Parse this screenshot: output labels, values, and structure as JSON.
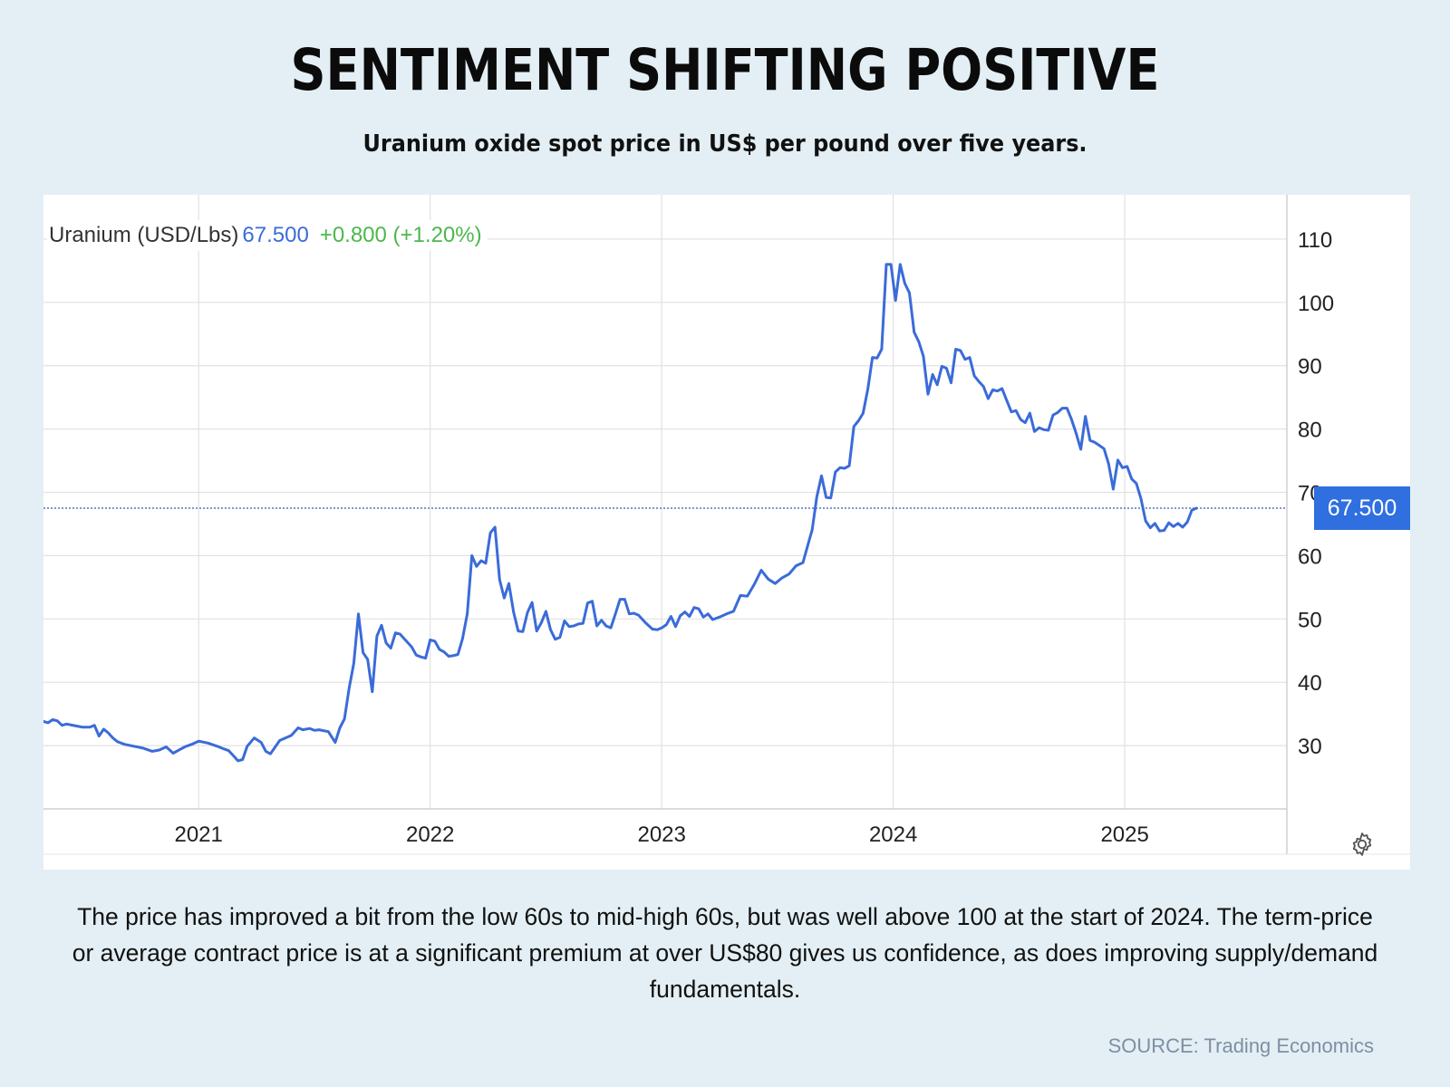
{
  "header": {
    "title": "SENTIMENT SHIFTING POSITIVE",
    "subtitle": "Uranium oxide spot price in US$ per pound over five years."
  },
  "legend": {
    "name": "Uranium (USD/Lbs)",
    "price": "67.500",
    "change": "+0.800 (+1.20%)"
  },
  "price_tag": "67.500",
  "icons": {
    "settings": "gear-icon"
  },
  "colors": {
    "line": "#3b6bd9",
    "price_tag": "#2f6fe0",
    "change_positive": "#4cb84c",
    "background": "#e3eff4"
  },
  "caption": "The price has improved a bit from the low 60s to mid-high 60s, but was well above 100 at the start of 2024. The term-price or average contract price is at a significant premium at over US$80 gives us confidence, as does improving supply/demand fundamentals.",
  "source": "SOURCE: Trading Economics",
  "chart_data": {
    "type": "line",
    "title": "",
    "xlabel": "",
    "ylabel": "",
    "xlim": [
      2020.33,
      2025.7
    ],
    "ylim": [
      20.0,
      117.0
    ],
    "y_ticks": [
      30,
      40,
      50,
      60,
      70,
      80,
      90,
      100,
      110
    ],
    "x_ticks": [
      2021,
      2022,
      2023,
      2024,
      2025
    ],
    "x_tick_labels": [
      "2021",
      "2022",
      "2023",
      "2024",
      "2025"
    ],
    "grid": true,
    "y_axis_side": "right",
    "last_value": 67.5,
    "series": [
      {
        "name": "Uranium (USD/Lbs)",
        "x": [
          2020.33,
          2020.35,
          2020.37,
          2020.39,
          2020.41,
          2020.43,
          2020.47,
          2020.5,
          2020.53,
          2020.55,
          2020.57,
          2020.59,
          2020.61,
          2020.63,
          2020.65,
          2020.68,
          2020.72,
          2020.76,
          2020.8,
          2020.83,
          2020.86,
          2020.89,
          2020.92,
          2020.94,
          2020.97,
          2021.0,
          2021.04,
          2021.08,
          2021.1,
          2021.13,
          2021.15,
          2021.17,
          2021.19,
          2021.21,
          2021.24,
          2021.27,
          2021.29,
          2021.31,
          2021.35,
          2021.4,
          2021.43,
          2021.45,
          2021.48,
          2021.5,
          2021.52,
          2021.56,
          2021.59,
          2021.61,
          2021.63,
          2021.65,
          2021.67,
          2021.69,
          2021.71,
          2021.73,
          2021.75,
          2021.77,
          2021.79,
          2021.81,
          2021.83,
          2021.85,
          2021.87,
          2021.9,
          2021.92,
          2021.94,
          2021.96,
          2021.98,
          2022.0,
          2022.02,
          2022.04,
          2022.06,
          2022.08,
          2022.1,
          2022.12,
          2022.14,
          2022.16,
          2022.18,
          2022.2,
          2022.22,
          2022.24,
          2022.26,
          2022.28,
          2022.3,
          2022.32,
          2022.34,
          2022.36,
          2022.38,
          2022.4,
          2022.42,
          2022.44,
          2022.46,
          2022.48,
          2022.5,
          2022.52,
          2022.54,
          2022.56,
          2022.58,
          2022.6,
          2022.62,
          2022.64,
          2022.66,
          2022.68,
          2022.7,
          2022.72,
          2022.74,
          2022.76,
          2022.78,
          2022.8,
          2022.82,
          2022.84,
          2022.86,
          2022.88,
          2022.9,
          2022.93,
          2022.96,
          2022.98,
          2023.0,
          2023.02,
          2023.04,
          2023.06,
          2023.08,
          2023.1,
          2023.12,
          2023.14,
          2023.16,
          2023.18,
          2023.2,
          2023.22,
          2023.25,
          2023.28,
          2023.31,
          2023.34,
          2023.37,
          2023.4,
          2023.43,
          2023.46,
          2023.49,
          2023.52,
          2023.55,
          2023.58,
          2023.61,
          2023.63,
          2023.65,
          2023.67,
          2023.69,
          2023.71,
          2023.73,
          2023.75,
          2023.77,
          2023.79,
          2023.81,
          2023.83,
          2023.85,
          2023.87,
          2023.89,
          2023.91,
          2023.93,
          2023.95,
          2023.97,
          2023.99,
          2024.01,
          2024.03,
          2024.05,
          2024.07,
          2024.09,
          2024.11,
          2024.13,
          2024.15,
          2024.17,
          2024.19,
          2024.21,
          2024.23,
          2024.25,
          2024.27,
          2024.29,
          2024.31,
          2024.33,
          2024.35,
          2024.37,
          2024.39,
          2024.41,
          2024.43,
          2024.45,
          2024.47,
          2024.49,
          2024.51,
          2024.53,
          2024.55,
          2024.57,
          2024.59,
          2024.61,
          2024.63,
          2024.65,
          2024.67,
          2024.69,
          2024.71,
          2024.73,
          2024.75,
          2024.77,
          2024.79,
          2024.81,
          2024.83,
          2024.85,
          2024.87,
          2024.89,
          2024.91,
          2024.93,
          2024.95,
          2024.97,
          2024.99,
          2025.01,
          2025.03,
          2025.05,
          2025.07,
          2025.09,
          2025.11,
          2025.13,
          2025.15,
          2025.17,
          2025.19,
          2025.21,
          2025.23,
          2025.25,
          2025.27,
          2025.29,
          2025.31
        ],
        "y": [
          33.8,
          33.6,
          34.1,
          33.9,
          33.2,
          33.4,
          33.1,
          32.9,
          32.9,
          33.2,
          31.5,
          32.6,
          32.0,
          31.2,
          30.6,
          30.2,
          29.9,
          29.6,
          29.1,
          29.3,
          29.8,
          28.8,
          29.4,
          29.8,
          30.2,
          30.7,
          30.4,
          29.9,
          29.6,
          29.2,
          28.4,
          27.6,
          27.8,
          29.9,
          31.2,
          30.5,
          29.1,
          28.7,
          30.8,
          31.6,
          32.8,
          32.5,
          32.7,
          32.4,
          32.5,
          32.2,
          30.5,
          32.8,
          34.2,
          39.1,
          43.0,
          50.8,
          44.7,
          43.6,
          38.5,
          47.3,
          49.0,
          46.2,
          45.4,
          47.8,
          47.6,
          46.4,
          45.6,
          44.3,
          44.0,
          43.8,
          46.7,
          46.5,
          45.2,
          44.8,
          44.1,
          44.2,
          44.4,
          46.9,
          50.8,
          60.0,
          58.3,
          59.2,
          58.8,
          63.6,
          64.5,
          56.2,
          53.3,
          55.6,
          51.1,
          48.1,
          48.0,
          51.0,
          52.6,
          48.1,
          49.4,
          51.2,
          48.3,
          46.8,
          47.1,
          49.7,
          48.8,
          48.9,
          49.2,
          49.3,
          52.5,
          52.8,
          48.9,
          49.8,
          48.9,
          48.6,
          50.8,
          53.1,
          53.1,
          50.8,
          50.9,
          50.6,
          49.4,
          48.4,
          48.3,
          48.6,
          49.1,
          50.4,
          48.8,
          50.5,
          51.1,
          50.4,
          51.8,
          51.6,
          50.3,
          50.8,
          49.9,
          50.3,
          50.8,
          51.2,
          53.7,
          53.6,
          55.5,
          57.7,
          56.3,
          55.6,
          56.5,
          57.1,
          58.4,
          58.9,
          61.5,
          64.1,
          69.3,
          72.6,
          69.2,
          69.1,
          73.2,
          73.9,
          73.8,
          74.2,
          80.4,
          81.3,
          82.5,
          86.3,
          91.3,
          91.2,
          92.6,
          106.0,
          106.0,
          100.3,
          106.0,
          103.0,
          101.5,
          95.3,
          93.8,
          91.5,
          85.5,
          88.6,
          87.0,
          89.9,
          89.6,
          87.3,
          92.6,
          92.4,
          91.0,
          91.3,
          88.4,
          87.5,
          86.7,
          84.8,
          86.2,
          86.0,
          86.4,
          84.5,
          82.7,
          82.9,
          81.5,
          81.0,
          82.5,
          79.6,
          80.2,
          79.9,
          79.8,
          82.2,
          82.6,
          83.3,
          83.3,
          81.5,
          79.3,
          76.8,
          82.0,
          78.2,
          77.9,
          77.4,
          76.9,
          74.5,
          70.5,
          75.1,
          73.9,
          74.1,
          72.1,
          71.4,
          69.0,
          65.5,
          64.4,
          65.1,
          63.9,
          64.0,
          65.2,
          64.6,
          65.1,
          64.5,
          65.3,
          67.2,
          67.5
        ]
      }
    ]
  }
}
